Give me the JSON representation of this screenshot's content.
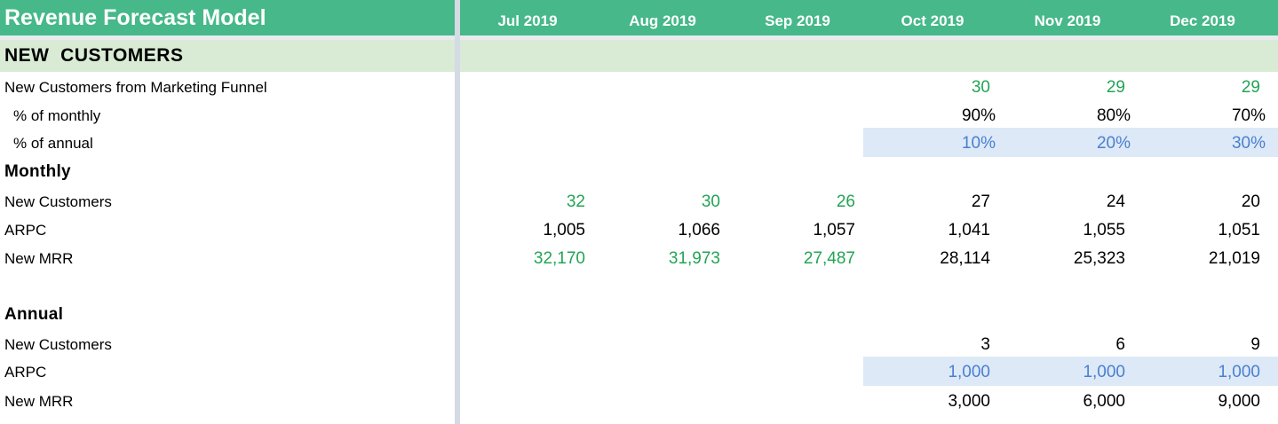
{
  "header": {
    "title": "Revenue Forecast Model",
    "months": [
      "Jul 2019",
      "Aug 2019",
      "Sep 2019",
      "Oct 2019",
      "Nov 2019",
      "Dec 2019"
    ]
  },
  "section": {
    "label": "NEW  CUSTOMERS"
  },
  "rows": {
    "funnel": {
      "label": "New Customers from Marketing Funnel",
      "values": [
        "",
        "",
        "",
        "30",
        "29",
        "29"
      ]
    },
    "pct_monthly": {
      "label": "% of monthly",
      "values": [
        "",
        "",
        "",
        "90%",
        "80%",
        "70%"
      ]
    },
    "pct_annual": {
      "label": "% of annual",
      "values": [
        "",
        "",
        "",
        "10%",
        "20%",
        "30%"
      ]
    },
    "monthly_heading": {
      "label": "Monthly"
    },
    "monthly_new_customers": {
      "label": "New Customers",
      "values": [
        "32",
        "30",
        "26",
        "27",
        "24",
        "20"
      ]
    },
    "monthly_arpc": {
      "label": "ARPC",
      "values": [
        "1,005",
        "1,066",
        "1,057",
        "1,041",
        "1,055",
        "1,051"
      ]
    },
    "monthly_new_mrr": {
      "label": "New MRR",
      "values": [
        "32,170",
        "31,973",
        "27,487",
        "28,114",
        "25,323",
        "21,019"
      ]
    },
    "annual_heading": {
      "label": "Annual"
    },
    "annual_new_customers": {
      "label": "New Customers",
      "values": [
        "",
        "",
        "",
        "3",
        "6",
        "9"
      ]
    },
    "annual_arpc": {
      "label": "ARPC",
      "values": [
        "",
        "",
        "",
        "1,000",
        "1,000",
        "1,000"
      ]
    },
    "annual_new_mrr": {
      "label": "New MRR",
      "values": [
        "",
        "",
        "",
        "3,000",
        "6,000",
        "9,000"
      ]
    }
  },
  "colors": {
    "header_bg": "#46b889",
    "section_bg": "#d9ebd5",
    "input_green": "#22a454",
    "input_blue": "#4a7fd1",
    "blue_fill": "#dde9f6"
  }
}
